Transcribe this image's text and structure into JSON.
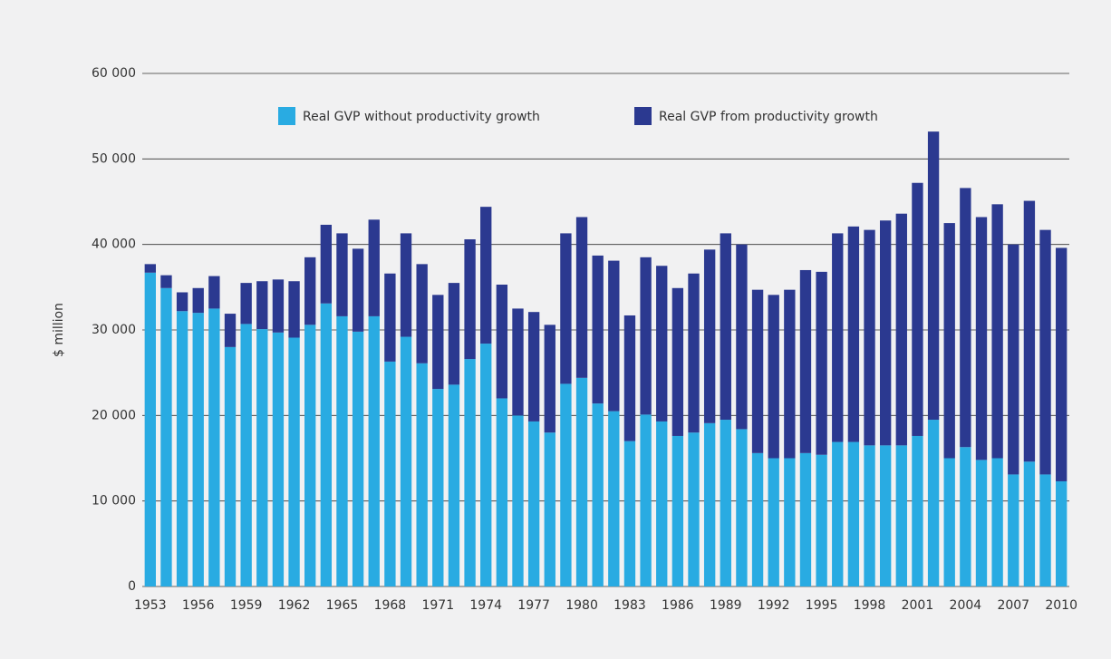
{
  "chart_data": {
    "type": "stacked_bar",
    "ylabel": "$ million",
    "categories": [
      "1953",
      null,
      null,
      "1956",
      null,
      null,
      "1959",
      null,
      null,
      "1962",
      null,
      null,
      "1965",
      null,
      null,
      "1968",
      null,
      null,
      "1971",
      null,
      null,
      "1974",
      null,
      null,
      "1977",
      null,
      null,
      "1980",
      null,
      null,
      "1983",
      null,
      null,
      "1986",
      null,
      null,
      "1989",
      null,
      null,
      "1992",
      null,
      null,
      "1995",
      null,
      null,
      "1998",
      null,
      null,
      "2001",
      null,
      null,
      "2004",
      null,
      null,
      "2007",
      null,
      null,
      "2010"
    ],
    "series": [
      {
        "name": "Real GVP without productivity growth",
        "color": "#29abe2",
        "values": [
          36700,
          34900,
          32200,
          32000,
          32500,
          28000,
          30700,
          30100,
          29700,
          29100,
          30600,
          33100,
          31600,
          29800,
          31600,
          26300,
          29200,
          26100,
          23100,
          23600,
          26600,
          28400,
          22000,
          20000,
          19300,
          18000,
          23700,
          24400,
          21400,
          20500,
          17000,
          20100,
          19300,
          17600,
          18000,
          19100,
          19500,
          18400,
          15600,
          15000,
          15000,
          15600,
          15400,
          16900,
          16900,
          16500,
          16500,
          16500,
          17600,
          19500,
          15000,
          16300,
          14800,
          15000,
          13100,
          14600,
          13100,
          12300
        ]
      },
      {
        "name": "Real GVP from productivity growth",
        "color": "#2b3990",
        "values": [
          1000,
          1500,
          2200,
          2900,
          3800,
          3900,
          4800,
          5600,
          6200,
          6600,
          7900,
          9200,
          9700,
          9700,
          11300,
          10300,
          12100,
          11600,
          11000,
          11900,
          14000,
          16000,
          13300,
          12500,
          12800,
          12600,
          17600,
          18800,
          17300,
          17600,
          14700,
          18400,
          18200,
          17300,
          18600,
          20300,
          21800,
          21600,
          19100,
          19100,
          19700,
          21400,
          21400,
          24400,
          25200,
          25200,
          26300,
          27100,
          29600,
          33700,
          27500,
          30300,
          28400,
          29700,
          26900,
          30500,
          28600,
          27300
        ]
      }
    ],
    "ylim": [
      0,
      60000
    ],
    "yticks": [
      0,
      {
        "value": 10000,
        "label": "10 000"
      },
      {
        "value": 20000,
        "label": "20 000"
      },
      {
        "value": 30000,
        "label": "30 000"
      },
      {
        "value": 40000,
        "label": "40 000"
      },
      {
        "value": 50000,
        "label": "50 000"
      },
      {
        "value": 60000,
        "label": "60 000"
      }
    ],
    "grid": true,
    "legend": "top"
  }
}
